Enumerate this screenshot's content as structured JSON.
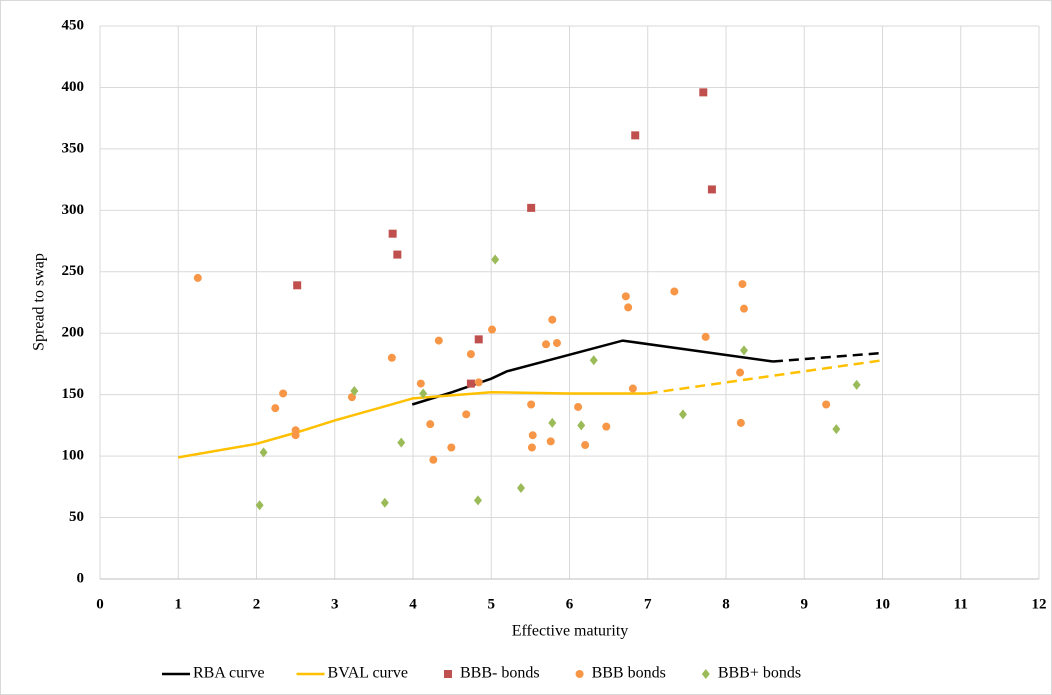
{
  "chart_data": {
    "type": "scatter",
    "x_label": "Effective maturity",
    "y_label": "Spread to swap",
    "xlim": [
      0,
      12
    ],
    "xticks": [
      0,
      1,
      2,
      3,
      4,
      5,
      6,
      7,
      8,
      9,
      10,
      11,
      12
    ],
    "ylim": [
      0,
      450
    ],
    "yticks": [
      0,
      50,
      100,
      150,
      200,
      250,
      300,
      350,
      400,
      450
    ],
    "grid": true,
    "legend": "bottom",
    "series": [
      {
        "name": "RBA curve",
        "type": "line",
        "color": "#000000",
        "dashed_from": 5,
        "x": [
          3.99,
          4.5,
          5,
          5.2,
          6.68,
          8.6,
          10.02
        ],
        "values": [
          142,
          152,
          163,
          169,
          194,
          177,
          184
        ]
      },
      {
        "name": "BVAL curve",
        "type": "line",
        "color": "#ffc000",
        "dashed_from": 7,
        "x": [
          1,
          2,
          2.5,
          3,
          4,
          5,
          6,
          7,
          10
        ],
        "values": [
          99,
          110,
          119,
          129,
          147,
          152,
          151,
          151,
          178
        ]
      },
      {
        "name": "BBB- bonds",
        "type": "scatter",
        "marker": "square",
        "color": "#c0504d",
        "x": [
          2.52,
          3.74,
          3.8,
          5.51,
          4.84,
          4.74,
          6.84,
          7.71,
          7.82
        ],
        "values": [
          239,
          281,
          264,
          302,
          195,
          159,
          361,
          396,
          317
        ]
      },
      {
        "name": "BBB bonds",
        "type": "scatter",
        "marker": "circle",
        "color": "#f79646",
        "x": [
          1.25,
          2.24,
          2.34,
          2.5,
          2.5,
          3.22,
          3.73,
          4.1,
          4.33,
          4.22,
          4.26,
          4.49,
          4.68,
          4.74,
          4.84,
          5.01,
          5.51,
          5.53,
          5.52,
          5.7,
          5.78,
          5.84,
          5.76,
          6.11,
          6.2,
          6.47,
          6.72,
          6.75,
          6.81,
          7.34,
          7.74,
          8.18,
          8.21,
          8.23,
          8.19,
          9.28
        ],
        "values": [
          245,
          139,
          151,
          121,
          117,
          148,
          180,
          159,
          194,
          126,
          97,
          107,
          134,
          183,
          160,
          203,
          142,
          117,
          107,
          191,
          211,
          192,
          112,
          140,
          109,
          124,
          230,
          221,
          155,
          234,
          197,
          168,
          240,
          220,
          127,
          142
        ]
      },
      {
        "name": "BBB+ bonds",
        "type": "scatter",
        "marker": "diamond",
        "color": "#9bbb59",
        "x": [
          2.04,
          2.09,
          3.25,
          3.64,
          3.85,
          4.13,
          5.05,
          4.83,
          5.38,
          5.78,
          6.31,
          6.15,
          7.45,
          8.23,
          9.41,
          9.67
        ],
        "values": [
          60,
          103,
          153,
          62,
          111,
          151,
          260,
          64,
          74,
          127,
          178,
          125,
          134,
          186,
          122,
          158
        ]
      }
    ]
  }
}
